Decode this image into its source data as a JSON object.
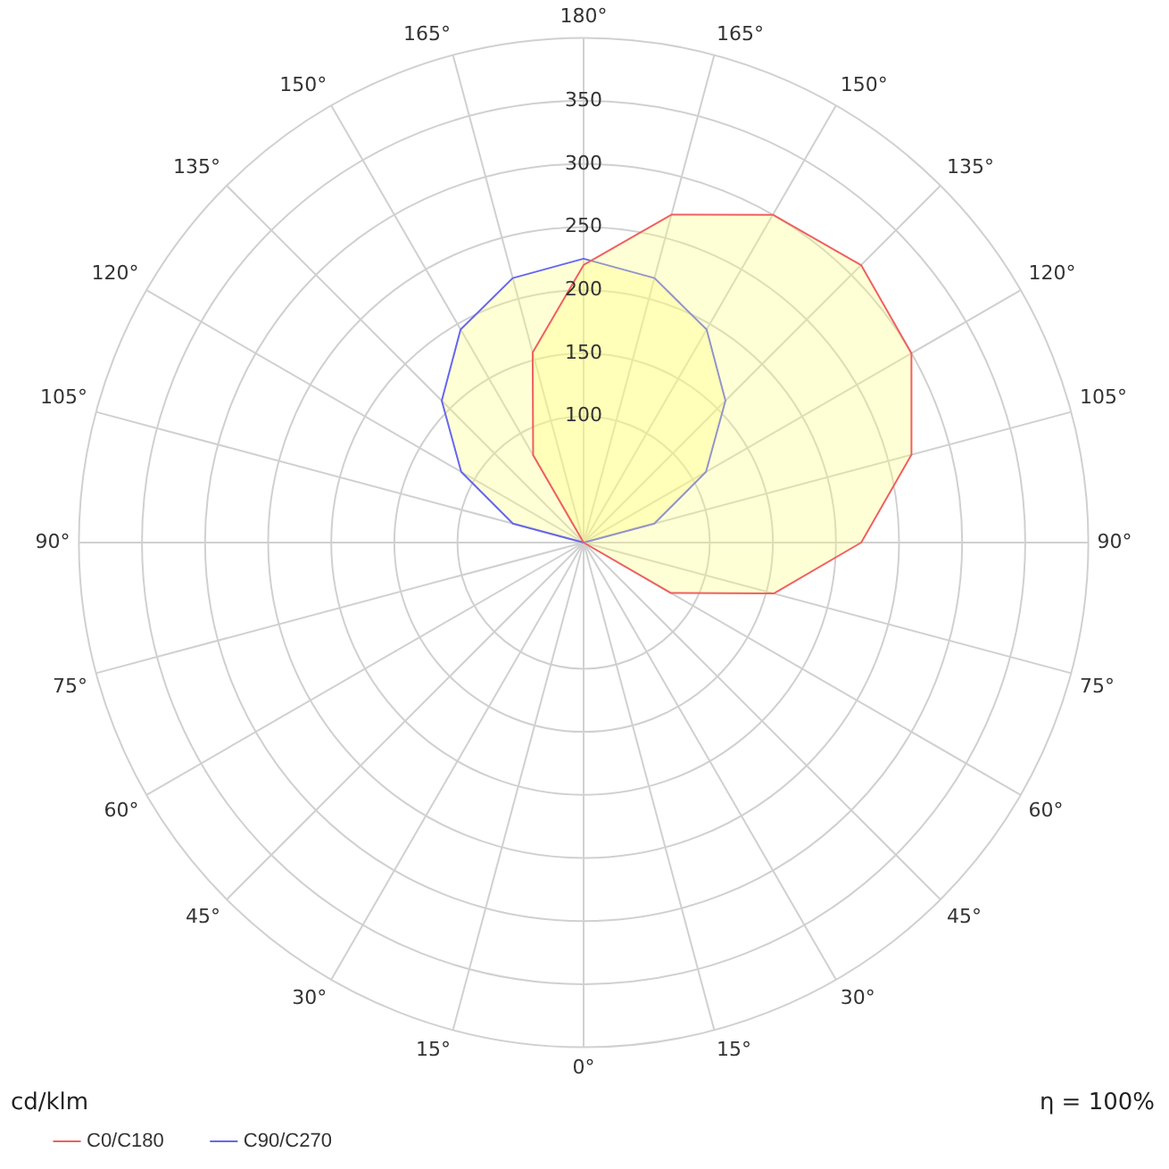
{
  "chart_data": {
    "type": "radar",
    "categories": [
      "180°",
      "165°",
      "150°",
      "135°",
      "120°",
      "105°",
      "90°",
      "75°",
      "60°",
      "45°",
      "30°",
      "15°",
      "0°",
      "15°",
      "30°",
      "45°",
      "60°",
      "75°",
      "90°",
      "105°",
      "120°",
      "135°",
      "150°",
      "165°"
    ],
    "series": [
      {
        "name": "C0/C180",
        "color": "#f06060",
        "values": [
          220,
          269,
          300,
          311,
          300,
          269,
          220,
          156,
          80,
          0,
          0,
          0,
          0,
          0,
          0,
          0,
          0,
          0,
          0,
          0,
          0,
          0,
          80,
          156
        ]
      },
      {
        "name": "C90/C270",
        "color": "#6666ee",
        "values": [
          225,
          217,
          195,
          159,
          112,
          58,
          0,
          0,
          0,
          0,
          0,
          0,
          0,
          0,
          0,
          0,
          0,
          0,
          0,
          58,
          112,
          159,
          195,
          217
        ]
      }
    ],
    "ylim": [
      0,
      400
    ],
    "yticks": [
      100,
      150,
      200,
      250,
      300,
      350
    ],
    "grid": true,
    "legend": "bottom left",
    "marker": "none",
    "line_style": "solid",
    "annotations": [
      "cd/klm",
      "η = 100%"
    ]
  }
}
